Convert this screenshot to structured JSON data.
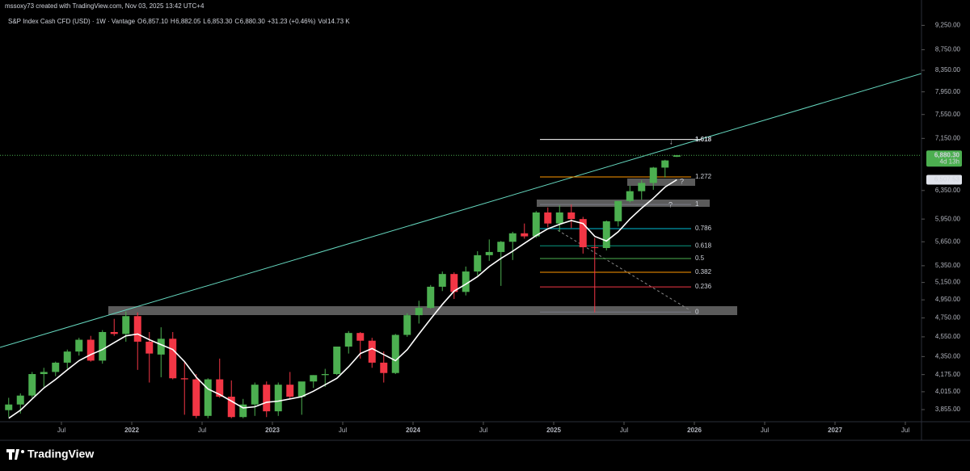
{
  "chart_data": {
    "type": "candlestick",
    "title": "mssoxy73 created with TradingView.com, Nov 03, 2025 13:42 UTC+4",
    "symbol": "S&P Index Cash CFD (USD) · 1W · Vantage",
    "legend": [
      {
        "key": "O",
        "value": "6,857.10"
      },
      {
        "key": "H",
        "value": "6,882.05"
      },
      {
        "key": "L",
        "value": "6,853.30"
      },
      {
        "key": "C",
        "value": "6,880.30"
      }
    ],
    "change": "+31.23 (+0.46%)",
    "volume": {
      "key": "Vol",
      "value": "14.73 K"
    },
    "brand": "TradingView",
    "log_scale": true,
    "up_color": "#4caf50",
    "down_color": "#f23645",
    "x": [
      "2021-02",
      "2021-03",
      "2021-04",
      "2021-05",
      "2021-06",
      "2021-07",
      "2021-08",
      "2021-09",
      "2021-10",
      "2021-11",
      "2021-12",
      "2022-01",
      "2022-02",
      "2022-03",
      "2022-04",
      "2022-05",
      "2022-06",
      "2022-07",
      "2022-08",
      "2022-09",
      "2022-10",
      "2022-11",
      "2022-12",
      "2023-01",
      "2023-02",
      "2023-03",
      "2023-04",
      "2023-05",
      "2023-06",
      "2023-07",
      "2023-08",
      "2023-09",
      "2023-10",
      "2023-11",
      "2023-12",
      "2024-01",
      "2024-02",
      "2024-03",
      "2024-04",
      "2024-05",
      "2024-06",
      "2024-07",
      "2024-08",
      "2024-09",
      "2024-10",
      "2024-11",
      "2024-12",
      "2025-01",
      "2025-02",
      "2025-03",
      "2025-04",
      "2025-05",
      "2025-06",
      "2025-07",
      "2025-08",
      "2025-09",
      "2025-10",
      "2025-11"
    ],
    "open": [
      3850,
      3900,
      3980,
      4180,
      4200,
      4290,
      4400,
      4520,
      4310,
      4600,
      4580,
      4770,
      4500,
      4370,
      4530,
      4140,
      4130,
      3800,
      4130,
      3970,
      3790,
      3900,
      4080,
      3840,
      4080,
      3970,
      4110,
      4170,
      4180,
      4450,
      4590,
      4510,
      4290,
      4190,
      4570,
      4780,
      4860,
      5100,
      5250,
      5040,
      5280,
      5480,
      5520,
      5650,
      5760,
      5720,
      6040,
      5890,
      6040,
      5950,
      5580,
      5570,
      5920,
      6200,
      6340,
      6460,
      6690,
      6857.1
    ],
    "high": [
      3960,
      4000,
      4200,
      4240,
      4300,
      4420,
      4540,
      4560,
      4620,
      4740,
      4820,
      4810,
      4600,
      4650,
      4600,
      4300,
      4180,
      4140,
      4330,
      4120,
      3950,
      4100,
      4110,
      4100,
      4200,
      4100,
      4170,
      4230,
      4450,
      4610,
      4600,
      4540,
      4400,
      4580,
      4800,
      4940,
      5120,
      5280,
      5270,
      5340,
      5530,
      5680,
      5660,
      5780,
      5890,
      6060,
      6110,
      6140,
      6150,
      5980,
      5700,
      5930,
      6200,
      6420,
      6500,
      6700,
      6810,
      6882.05
    ],
    "low": [
      3790,
      3820,
      3960,
      4060,
      4160,
      4230,
      4360,
      4300,
      4280,
      4560,
      4500,
      4220,
      4100,
      4150,
      4130,
      3810,
      3780,
      3780,
      3960,
      3780,
      3780,
      3800,
      3790,
      3800,
      3950,
      3810,
      4050,
      4060,
      4170,
      4380,
      4330,
      4240,
      4100,
      4180,
      4550,
      4690,
      4850,
      5050,
      4960,
      5000,
      5230,
      5410,
      5110,
      5420,
      5690,
      5700,
      5840,
      5780,
      5830,
      5500,
      4810,
      5540,
      5850,
      6180,
      6220,
      6360,
      6540,
      6853.3
    ],
    "close": [
      3900,
      3980,
      4180,
      4200,
      4290,
      4400,
      4520,
      4310,
      4600,
      4580,
      4770,
      4500,
      4380,
      4530,
      4140,
      4130,
      3800,
      4130,
      3970,
      3790,
      3900,
      4080,
      3840,
      4080,
      3970,
      4110,
      4170,
      4180,
      4450,
      4590,
      4510,
      4290,
      4190,
      4570,
      4780,
      4860,
      5100,
      5250,
      5040,
      5280,
      5480,
      5520,
      5650,
      5760,
      5720,
      6040,
      5890,
      6040,
      5950,
      5580,
      5570,
      5920,
      6200,
      6340,
      6460,
      6690,
      6800,
      6880.3
    ],
    "moving_average": {
      "color": "#ffffff",
      "values": [
        3780,
        3850,
        3950,
        4050,
        4130,
        4220,
        4310,
        4370,
        4420,
        4490,
        4560,
        4580,
        4520,
        4470,
        4420,
        4300,
        4150,
        4040,
        3990,
        3930,
        3870,
        3880,
        3920,
        3930,
        3950,
        3970,
        4020,
        4080,
        4140,
        4250,
        4380,
        4430,
        4370,
        4310,
        4420,
        4580,
        4740,
        4900,
        5050,
        5130,
        5220,
        5340,
        5440,
        5530,
        5630,
        5730,
        5820,
        5880,
        5930,
        5890,
        5720,
        5660,
        5780,
        5950,
        6100,
        6240,
        6400,
        6507.53
      ]
    },
    "last_price": {
      "value": 6880.3,
      "label": "6,880.30"
    },
    "countdown": "4d 13h",
    "ma_price": {
      "value": 6507.53,
      "label": "6,507.53"
    },
    "fib_levels": [
      {
        "value": 7132,
        "label": "1.618",
        "color": "#ffffff"
      },
      {
        "value": 6550,
        "label": "1.272",
        "color": "#ff9800"
      },
      {
        "value": 6151,
        "label": "1",
        "color": "#787b86"
      },
      {
        "value": 5821,
        "label": "0.786",
        "color": "#00bcd4"
      },
      {
        "value": 5598,
        "label": "0.618",
        "color": "#089981"
      },
      {
        "value": 5439,
        "label": "0.5",
        "color": "#4caf50"
      },
      {
        "value": 5271,
        "label": "0.382",
        "color": "#ff9800"
      },
      {
        "value": 5098,
        "label": "0.236",
        "color": "#f23645"
      },
      {
        "value": 4814,
        "label": "0",
        "color": "#787b86"
      }
    ],
    "xlim": [
      "2021-01",
      "2027-07"
    ],
    "xticks": [
      {
        "value": "2021-07",
        "label": "Jul"
      },
      {
        "value": "2022-01",
        "label": "2022"
      },
      {
        "value": "2022-07",
        "label": "Jul"
      },
      {
        "value": "2023-01",
        "label": "2023"
      },
      {
        "value": "2023-07",
        "label": "Jul"
      },
      {
        "value": "2024-01",
        "label": "2024"
      },
      {
        "value": "2024-07",
        "label": "Jul"
      },
      {
        "value": "2025-01",
        "label": "2025"
      },
      {
        "value": "2025-07",
        "label": "Jul"
      },
      {
        "value": "2026-01",
        "label": "2026"
      },
      {
        "value": "2026-07",
        "label": "Jul"
      },
      {
        "value": "2027-01",
        "label": "2027"
      },
      {
        "value": "2027-07",
        "label": "Jul"
      }
    ],
    "ylim": [
      3750,
      9800
    ],
    "yticks": [
      {
        "value": 9250,
        "label": "9,250.00"
      },
      {
        "value": 8750,
        "label": "8,750.00"
      },
      {
        "value": 8350,
        "label": "8,350.00"
      },
      {
        "value": 7950,
        "label": "7,950.00"
      },
      {
        "value": 7550,
        "label": "7,550.00"
      },
      {
        "value": 7150,
        "label": "7,150.00"
      },
      {
        "value": 6350,
        "label": "6,350.00"
      },
      {
        "value": 5950,
        "label": "5,950.00"
      },
      {
        "value": 5650,
        "label": "5,650.00"
      },
      {
        "value": 5350,
        "label": "5,350.00"
      },
      {
        "value": 5150,
        "label": "5,150.00"
      },
      {
        "value": 4950,
        "label": "4,950.00"
      },
      {
        "value": 4750,
        "label": "4,750.00"
      },
      {
        "value": 4550,
        "label": "4,550.00"
      },
      {
        "value": 4350,
        "label": "4,350.00"
      },
      {
        "value": 4175,
        "label": "4,175.00"
      },
      {
        "value": 4015,
        "label": "4,015.00"
      },
      {
        "value": 3855,
        "label": "3,855.00"
      }
    ]
  }
}
